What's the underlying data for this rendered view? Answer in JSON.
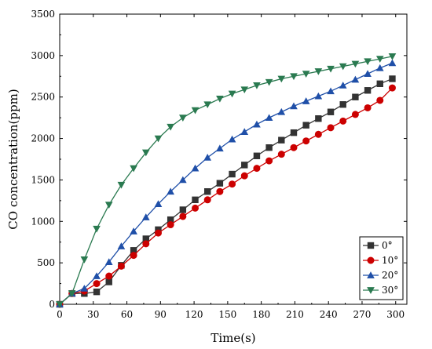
{
  "chart_data": {
    "type": "line",
    "xlabel": "Time(s)",
    "ylabel": "CO concentration(ppm)",
    "xlim": [
      0,
      310
    ],
    "ylim": [
      0,
      3500
    ],
    "xticks": [
      0,
      30,
      60,
      90,
      120,
      150,
      180,
      210,
      240,
      270,
      300
    ],
    "yticks": [
      0,
      500,
      1000,
      1500,
      2000,
      2500,
      3000,
      3500
    ],
    "grid": false,
    "legend_position": "bottom-right",
    "series": [
      {
        "name": "0°",
        "color": "#333333",
        "marker": "square",
        "x": [
          0,
          11,
          22,
          33,
          44,
          55,
          66,
          77,
          88,
          99,
          110,
          121,
          132,
          143,
          154,
          165,
          176,
          187,
          198,
          209,
          220,
          231,
          242,
          253,
          264,
          275,
          286,
          297
        ],
        "y": [
          0,
          130,
          130,
          150,
          270,
          470,
          650,
          790,
          900,
          1020,
          1140,
          1260,
          1360,
          1460,
          1570,
          1680,
          1790,
          1890,
          1980,
          2070,
          2160,
          2240,
          2320,
          2410,
          2500,
          2580,
          2660,
          2720
        ]
      },
      {
        "name": "10°",
        "color": "#cc0000",
        "marker": "circle",
        "x": [
          0,
          11,
          22,
          33,
          44,
          55,
          66,
          77,
          88,
          99,
          110,
          121,
          132,
          143,
          154,
          165,
          176,
          187,
          198,
          209,
          220,
          231,
          242,
          253,
          264,
          275,
          286,
          297
        ],
        "y": [
          0,
          130,
          160,
          250,
          340,
          460,
          590,
          730,
          860,
          960,
          1060,
          1160,
          1260,
          1360,
          1450,
          1550,
          1640,
          1730,
          1810,
          1890,
          1970,
          2050,
          2130,
          2210,
          2290,
          2370,
          2460,
          2610
        ]
      },
      {
        "name": "20°",
        "color": "#1f4fa8",
        "marker": "triangle-up",
        "x": [
          0,
          11,
          22,
          33,
          44,
          55,
          66,
          77,
          88,
          99,
          110,
          121,
          132,
          143,
          154,
          165,
          176,
          187,
          198,
          209,
          220,
          231,
          242,
          253,
          264,
          275,
          286,
          297
        ],
        "y": [
          0,
          130,
          190,
          340,
          510,
          700,
          880,
          1050,
          1210,
          1360,
          1500,
          1640,
          1770,
          1880,
          1990,
          2080,
          2170,
          2250,
          2320,
          2390,
          2450,
          2510,
          2570,
          2640,
          2710,
          2780,
          2850,
          2910
        ]
      },
      {
        "name": "30°",
        "color": "#2a7a50",
        "marker": "triangle-down",
        "x": [
          0,
          11,
          22,
          33,
          44,
          55,
          66,
          77,
          88,
          99,
          110,
          121,
          132,
          143,
          154,
          165,
          176,
          187,
          198,
          209,
          220,
          231,
          242,
          253,
          264,
          275,
          286,
          297
        ],
        "y": [
          0,
          130,
          540,
          910,
          1200,
          1440,
          1640,
          1830,
          2000,
          2140,
          2250,
          2340,
          2410,
          2480,
          2540,
          2590,
          2640,
          2680,
          2720,
          2750,
          2780,
          2810,
          2840,
          2870,
          2900,
          2930,
          2960,
          2990
        ]
      }
    ]
  }
}
